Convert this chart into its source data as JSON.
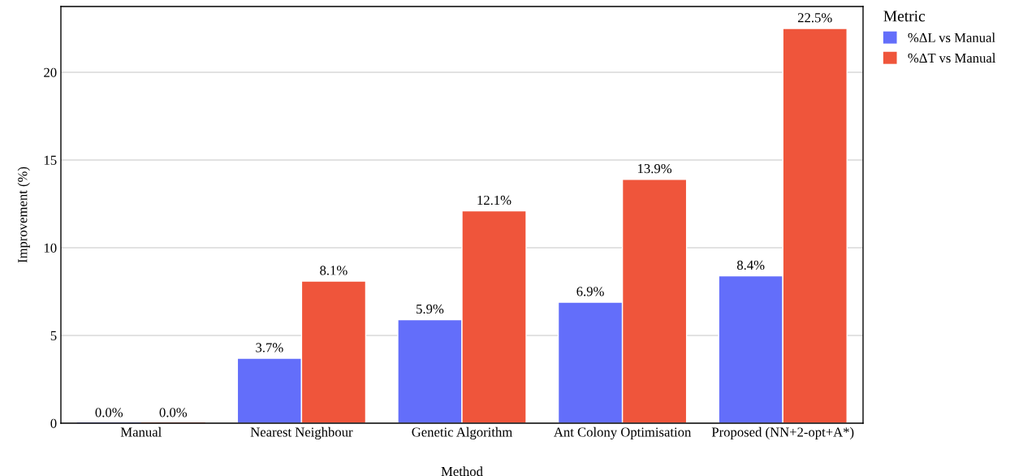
{
  "chart_data": {
    "type": "bar",
    "xlabel": "Method",
    "ylabel": "Improvement (%)",
    "legend_title": "Metric",
    "categories": [
      "Manual",
      "Nearest Neighbour",
      "Genetic Algorithm",
      "Ant Colony Optimisation",
      "Proposed (NN+2-opt+A*)"
    ],
    "series": [
      {
        "name": "%ΔL vs Manual",
        "color": "#636efa",
        "values": [
          0.0,
          3.7,
          5.9,
          6.9,
          8.4
        ],
        "value_labels": [
          "0.0%",
          "3.7%",
          "5.9%",
          "6.9%",
          "8.4%"
        ]
      },
      {
        "name": "%ΔT vs Manual",
        "color": "#ef553b",
        "values": [
          0.0,
          8.1,
          12.1,
          13.9,
          22.5
        ],
        "value_labels": [
          "0.0%",
          "8.1%",
          "12.1%",
          "13.9%",
          "22.5%"
        ]
      }
    ],
    "ylim": [
      0,
      23.75
    ],
    "yticks": [
      0,
      5,
      10,
      15,
      20
    ],
    "grid": "y",
    "legend": "top right"
  }
}
